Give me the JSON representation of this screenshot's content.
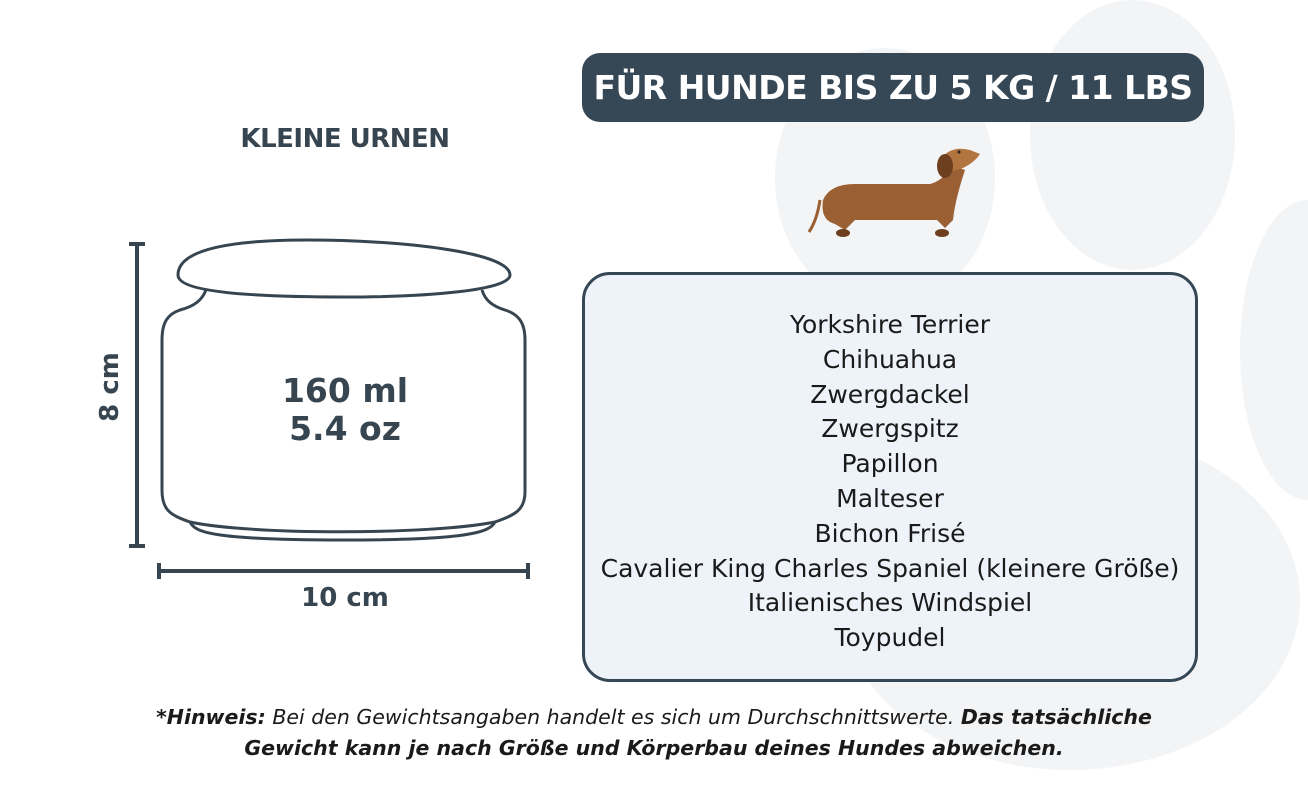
{
  "header": {
    "badge": "FÜR HUNDE BIS ZU 5 KG / 11 LBS",
    "section_title": "KLEINE URNEN"
  },
  "urn": {
    "volume_ml": "160 ml",
    "volume_oz": "5.4 oz",
    "width": "10 cm",
    "height": "8 cm"
  },
  "breeds": [
    "Yorkshire Terrier",
    "Chihuahua",
    "Zwergdackel",
    "Zwergspitz",
    "Papillon",
    "Malteser",
    "Bichon Frisé",
    "Cavalier King Charles Spaniel (kleinere Größe)",
    "Italienisches Windspiel",
    "Toypudel"
  ],
  "note": {
    "label": "*Hinweis:",
    "text1": " Bei den Gewichtsangaben handelt es sich um Durchschnittswerte. ",
    "text2": "Das tatsächliche Gewicht kann je nach Größe und Körperbau deines Hundes abweichen."
  },
  "colors": {
    "primary": "#364756",
    "box_bg": "#eef3fa",
    "paw": "#f3f4f6",
    "dog": "#9a5f32"
  },
  "icons": {
    "dog": "dachshund-illustration",
    "background": "paw-print"
  }
}
